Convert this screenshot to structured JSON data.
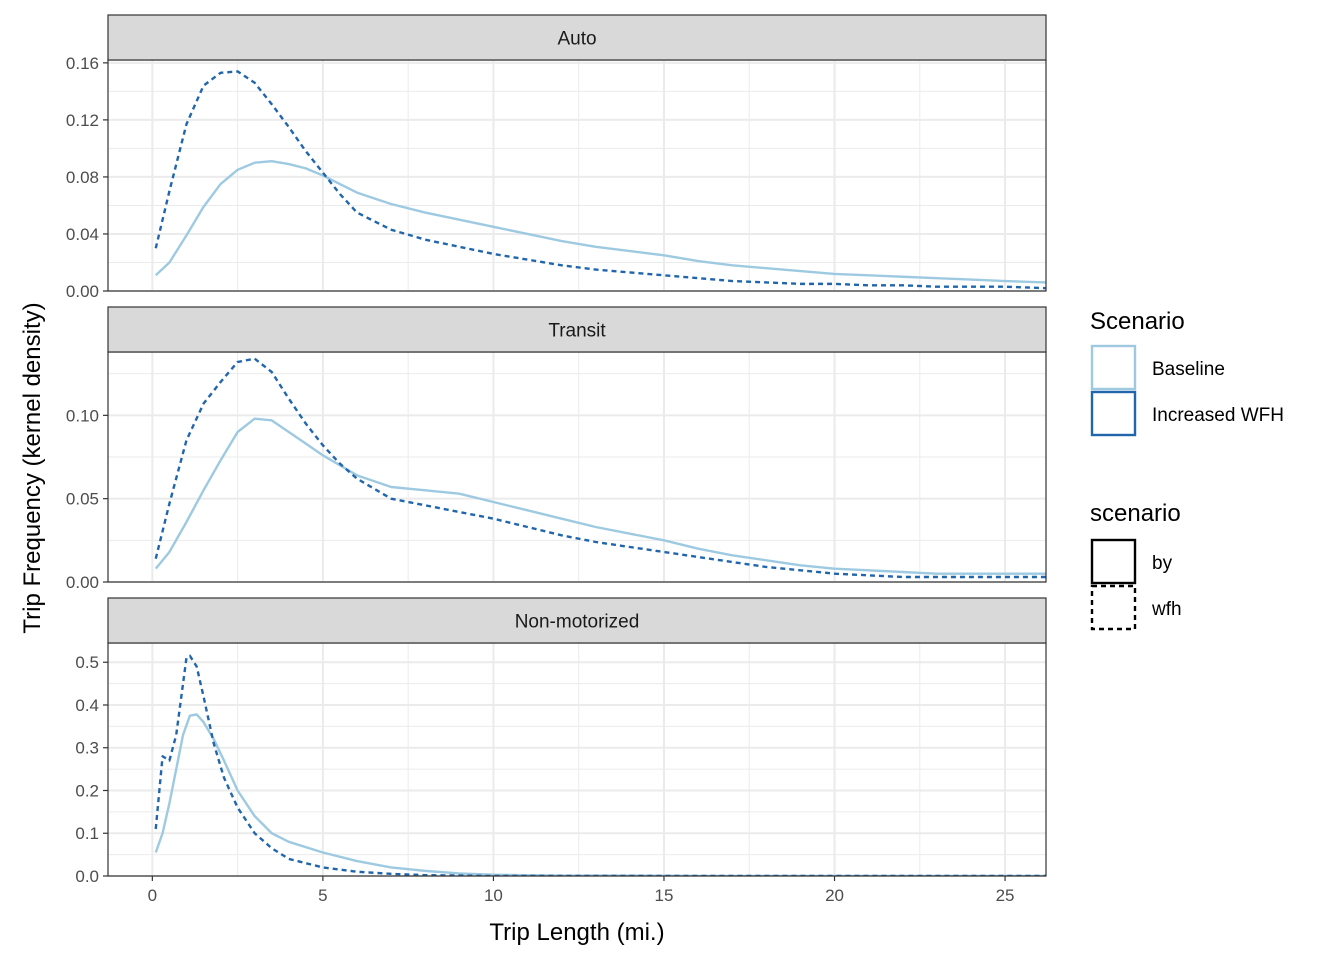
{
  "chart_data": {
    "type": "line",
    "xlabel": "Trip Length (mi.)",
    "ylabel": "Trip Frequency (kernel density)",
    "xlim": [
      -1.3,
      26.2
    ],
    "x_ticks": [
      0,
      5,
      10,
      15,
      20,
      25
    ],
    "grid": true,
    "legend_placement": "right",
    "colors": {
      "Baseline": "#9ecae1",
      "Increased WFH": "#2166ac",
      "strip_fill": "#d9d9d9",
      "panel_border": "#333333",
      "grid": "#ebebeb"
    },
    "legends": [
      {
        "title": "Scenario",
        "entries": [
          {
            "label": "Baseline",
            "color": "#9ecae1",
            "linetype": "solid"
          },
          {
            "label": "Increased WFH",
            "color": "#2166ac",
            "linetype": "solid"
          }
        ]
      },
      {
        "title": "scenario",
        "entries": [
          {
            "label": "by",
            "color": "#000000",
            "linetype": "solid"
          },
          {
            "label": "wfh",
            "color": "#000000",
            "linetype": "dashed"
          }
        ]
      }
    ],
    "panels": [
      {
        "strip": "Auto",
        "ylim": [
          0,
          0.162
        ],
        "y_ticks": [
          0,
          0.04,
          0.08,
          0.12,
          0.16
        ],
        "y_tick_labels": [
          "0.00",
          "0.04",
          "0.08",
          "0.12",
          "0.16"
        ],
        "series": [
          {
            "name": "Baseline",
            "linetype": "solid",
            "color": "#9ecae1",
            "x": [
              0.1,
              0.5,
              1,
              1.5,
              2,
              2.5,
              3,
              3.5,
              4,
              4.5,
              5,
              5.5,
              6,
              7,
              8,
              9,
              10,
              11,
              12,
              13,
              14,
              15,
              16,
              17,
              18,
              19,
              20,
              21,
              22,
              23,
              24,
              25,
              26.2
            ],
            "y": [
              0.011,
              0.02,
              0.039,
              0.059,
              0.075,
              0.085,
              0.09,
              0.091,
              0.089,
              0.086,
              0.081,
              0.075,
              0.069,
              0.061,
              0.055,
              0.05,
              0.045,
              0.04,
              0.035,
              0.031,
              0.028,
              0.025,
              0.021,
              0.018,
              0.016,
              0.014,
              0.012,
              0.011,
              0.01,
              0.009,
              0.008,
              0.007,
              0.006
            ]
          },
          {
            "name": "Increased WFH",
            "linetype": "dashed",
            "color": "#2166ac",
            "x": [
              0.1,
              0.5,
              1,
              1.5,
              2,
              2.5,
              3,
              3.5,
              4,
              4.5,
              5,
              5.5,
              6,
              7,
              8,
              9,
              10,
              11,
              12,
              13,
              14,
              15,
              16,
              17,
              18,
              19,
              20,
              21,
              22,
              23,
              24,
              25,
              26.2
            ],
            "y": [
              0.03,
              0.07,
              0.117,
              0.144,
              0.153,
              0.154,
              0.146,
              0.131,
              0.115,
              0.098,
              0.083,
              0.068,
              0.055,
              0.043,
              0.036,
              0.031,
              0.026,
              0.022,
              0.018,
              0.015,
              0.013,
              0.011,
              0.009,
              0.007,
              0.006,
              0.005,
              0.005,
              0.004,
              0.004,
              0.003,
              0.003,
              0.003,
              0.002
            ]
          }
        ]
      },
      {
        "strip": "Transit",
        "ylim": [
          0,
          0.138
        ],
        "y_ticks": [
          0,
          0.05,
          0.1
        ],
        "y_tick_labels": [
          "0.00",
          "0.05",
          "0.10"
        ],
        "series": [
          {
            "name": "Baseline",
            "linetype": "solid",
            "color": "#9ecae1",
            "x": [
              0.1,
              0.5,
              1,
              1.5,
              2,
              2.5,
              3,
              3.5,
              4,
              4.5,
              5,
              5.5,
              6,
              7,
              8,
              9,
              10,
              11,
              12,
              13,
              14,
              15,
              16,
              17,
              18,
              19,
              20,
              21,
              22,
              23,
              24,
              25,
              26.2
            ],
            "y": [
              0.008,
              0.018,
              0.036,
              0.055,
              0.073,
              0.09,
              0.098,
              0.097,
              0.09,
              0.083,
              0.076,
              0.07,
              0.064,
              0.057,
              0.055,
              0.053,
              0.048,
              0.043,
              0.038,
              0.033,
              0.029,
              0.025,
              0.02,
              0.016,
              0.013,
              0.01,
              0.008,
              0.007,
              0.006,
              0.005,
              0.005,
              0.005,
              0.005
            ]
          },
          {
            "name": "Increased WFH",
            "linetype": "dashed",
            "color": "#2166ac",
            "x": [
              0.1,
              0.5,
              1,
              1.5,
              2,
              2.5,
              3,
              3.5,
              4,
              4.5,
              5,
              5.5,
              6,
              7,
              8,
              9,
              10,
              11,
              12,
              13,
              14,
              15,
              16,
              17,
              18,
              19,
              20,
              21,
              22,
              23,
              24,
              25,
              26.2
            ],
            "y": [
              0.014,
              0.047,
              0.085,
              0.107,
              0.12,
              0.132,
              0.134,
              0.126,
              0.11,
              0.095,
              0.082,
              0.071,
              0.062,
              0.05,
              0.046,
              0.042,
              0.038,
              0.033,
              0.028,
              0.024,
              0.021,
              0.018,
              0.015,
              0.012,
              0.009,
              0.007,
              0.005,
              0.004,
              0.003,
              0.003,
              0.003,
              0.003,
              0.003
            ]
          }
        ]
      },
      {
        "strip": "Non-motorized",
        "ylim": [
          0,
          0.545
        ],
        "y_ticks": [
          0,
          0.1,
          0.2,
          0.3,
          0.4,
          0.5
        ],
        "y_tick_labels": [
          "0.0",
          "0.1",
          "0.2",
          "0.3",
          "0.4",
          "0.5"
        ],
        "series": [
          {
            "name": "Baseline",
            "linetype": "solid",
            "color": "#9ecae1",
            "x": [
              0.1,
              0.3,
              0.5,
              0.7,
              0.9,
              1.1,
              1.3,
              1.5,
              1.8,
              2.1,
              2.5,
              3,
              3.5,
              4,
              5,
              6,
              7,
              8,
              9,
              10,
              11,
              12,
              14,
              16,
              18,
              20,
              22,
              24,
              26.2
            ],
            "y": [
              0.055,
              0.1,
              0.17,
              0.25,
              0.33,
              0.375,
              0.378,
              0.36,
              0.32,
              0.27,
              0.2,
              0.14,
              0.1,
              0.08,
              0.055,
              0.035,
              0.02,
              0.012,
              0.006,
              0.003,
              0.002,
              0.001,
              0.001,
              0.0,
              0.0,
              0.0,
              0.0,
              0.0,
              0.0
            ]
          },
          {
            "name": "Increased WFH",
            "linetype": "dashed",
            "color": "#2166ac",
            "x": [
              0.1,
              0.3,
              0.5,
              0.7,
              0.9,
              1.0,
              1.1,
              1.3,
              1.5,
              1.8,
              2.1,
              2.5,
              3,
              3.5,
              4,
              5,
              6,
              7,
              8,
              9,
              10,
              11,
              12,
              14,
              16,
              18,
              20,
              22,
              24,
              26.2
            ],
            "y": [
              0.11,
              0.28,
              0.27,
              0.33,
              0.45,
              0.51,
              0.515,
              0.49,
              0.42,
              0.31,
              0.23,
              0.16,
              0.1,
              0.065,
              0.04,
              0.02,
              0.01,
              0.005,
              0.002,
              0.001,
              0.0,
              0.0,
              0.0,
              0.0,
              0.0,
              0.0,
              0.0,
              0.0,
              0.0,
              0.0
            ]
          }
        ]
      }
    ]
  }
}
